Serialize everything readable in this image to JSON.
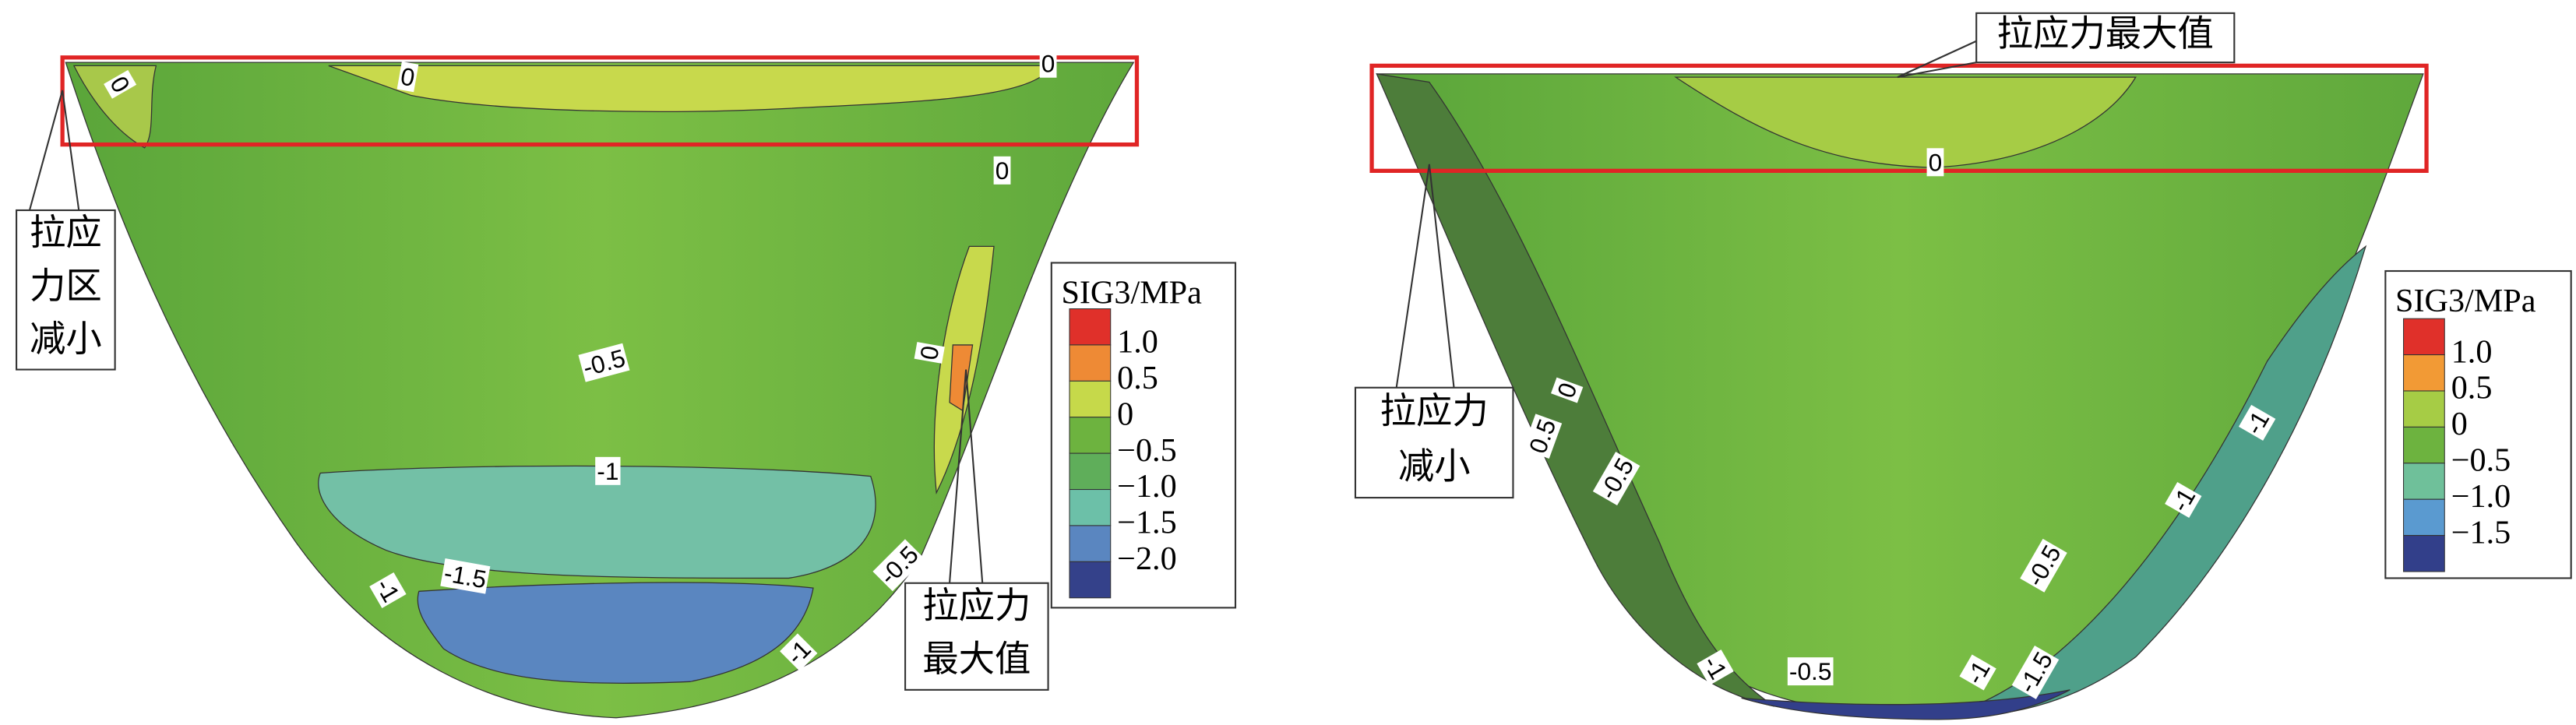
{
  "panels": [
    {
      "legend": {
        "title": "SIG3/MPa",
        "labels": [
          "1.0",
          "0.5",
          "0",
          "−0.5",
          "−1.0",
          "−1.5",
          "−2.0"
        ],
        "colors": [
          "#e0302a",
          "#ee8a35",
          "#c6d94a",
          "#6db33f",
          "#5fae5a",
          "#6cc0a8",
          "#5a86c0",
          "#34418a"
        ]
      },
      "annotations": [
        {
          "lines": [
            "拉应",
            "力区",
            "减小"
          ]
        },
        {
          "lines": [
            "拉应力",
            "最大值"
          ]
        }
      ],
      "contour_labels": [
        "0",
        "0",
        "0",
        "0",
        "-0.5",
        "0",
        "-1",
        "-1.5",
        "-1",
        "-0.5",
        "-1"
      ]
    },
    {
      "legend": {
        "title": "SIG3/MPa",
        "labels": [
          "1.0",
          "0.5",
          "0",
          "−0.5",
          "−1.0",
          "−1.5"
        ],
        "colors": [
          "#e0302a",
          "#f29a35",
          "#a6cc45",
          "#6db33f",
          "#6fc09a",
          "#5a9ad0",
          "#323f8a"
        ]
      },
      "annotations": [
        {
          "lines": [
            "拉应力最大值"
          ]
        },
        {
          "lines": [
            "拉应力",
            "减小"
          ]
        }
      ],
      "contour_labels": [
        "0",
        "0",
        "0.5",
        "-0.5",
        "-0.5",
        "-1",
        "-1",
        "-1",
        "-0.5",
        "-1",
        "-1.5"
      ]
    }
  ]
}
